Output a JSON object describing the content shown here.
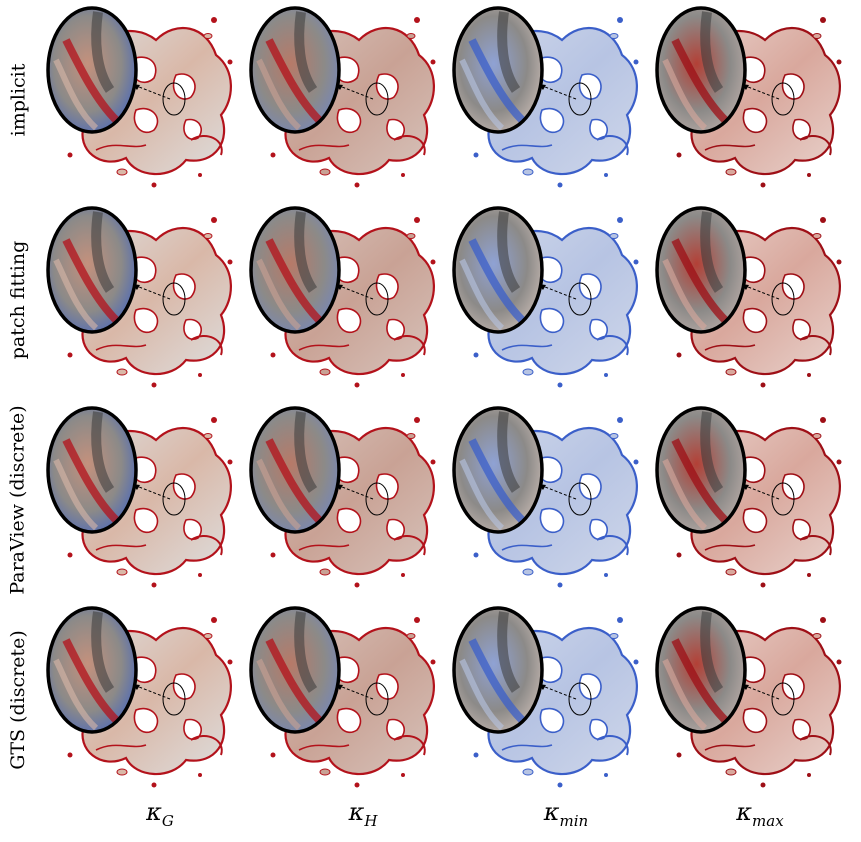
{
  "rows": [
    "implicit",
    "patch fitting",
    "ParaView (discrete)",
    "GTS (discrete)"
  ],
  "columns": [
    {
      "symbol": "κ",
      "subscript": "G"
    },
    {
      "symbol": "κ",
      "subscript": "H"
    },
    {
      "symbol": "κ",
      "subscript": "min"
    },
    {
      "symbol": "κ",
      "subscript": "max"
    }
  ],
  "colormap": {
    "negative": "#3b5fc9",
    "neutral": "#dedede",
    "positive": "#b3121b"
  },
  "column_tints": [
    "mixed",
    "red-dominant",
    "blue-dominant",
    "dark-red-dominant"
  ]
}
